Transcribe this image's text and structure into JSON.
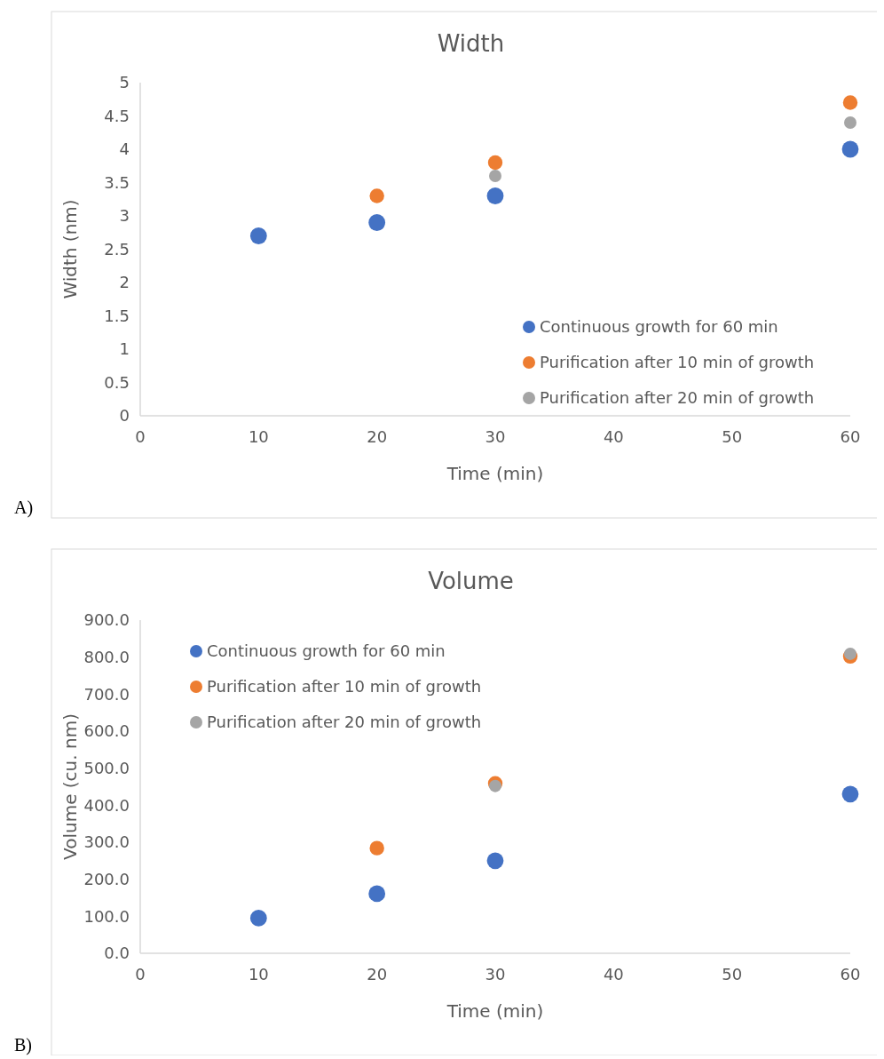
{
  "chart_data": [
    {
      "type": "scatter",
      "title": "Width",
      "xlabel": "Time (min)",
      "ylabel": "Width (nm)",
      "annotations": [
        "A)"
      ],
      "xlim": [
        0,
        60
      ],
      "xticks": [
        0,
        10,
        20,
        30,
        40,
        50,
        60
      ],
      "ylim": [
        0,
        5
      ],
      "yticks": [
        0,
        0.5,
        1,
        1.5,
        2,
        2.5,
        3,
        3.5,
        4,
        4.5,
        5
      ],
      "legend": "bottom right",
      "marker": "circle",
      "grid": false,
      "series": [
        {
          "name": "Continuous growth for 60 min",
          "color": "#4472c4",
          "x": [
            10,
            20,
            30,
            60
          ],
          "values": [
            2.7,
            2.9,
            3.3,
            4.0
          ]
        },
        {
          "name": "Purification after 10 min of growth",
          "color": "#ed7d31",
          "x": [
            20,
            30,
            60
          ],
          "values": [
            3.3,
            3.8,
            4.7
          ]
        },
        {
          "name": "Purification after 20 min of growth",
          "color": "#a5a5a5",
          "x": [
            30,
            60
          ],
          "values": [
            3.6,
            4.4
          ]
        }
      ]
    },
    {
      "type": "scatter",
      "title": "Volume",
      "xlabel": "Time (min)",
      "ylabel": "Volume (cu. nm)",
      "annotations": [
        "B)"
      ],
      "xlim": [
        0,
        60
      ],
      "xticks": [
        0,
        10,
        20,
        30,
        40,
        50,
        60
      ],
      "ylim": [
        0,
        900
      ],
      "yticks": [
        {
          "value": 0,
          "label": "0.0"
        },
        {
          "value": 100,
          "label": "100.0"
        },
        {
          "value": 200,
          "label": "200.0"
        },
        {
          "value": 300,
          "label": "300.0"
        },
        {
          "value": 400,
          "label": "400.0"
        },
        {
          "value": 500,
          "label": "500.0"
        },
        {
          "value": 600,
          "label": "600.0"
        },
        {
          "value": 700,
          "label": "700.0"
        },
        {
          "value": 800,
          "label": "800.0"
        },
        {
          "value": 900,
          "label": "900.0"
        }
      ],
      "legend": "top left",
      "marker": "circle",
      "grid": false,
      "series": [
        {
          "name": "Continuous growth for 60 min",
          "color": "#4472c4",
          "x": [
            10,
            20,
            30,
            60
          ],
          "values": [
            95,
            161,
            250,
            430
          ]
        },
        {
          "name": "Purification after 10 min of growth",
          "color": "#ed7d31",
          "x": [
            20,
            30,
            60
          ],
          "values": [
            284,
            459,
            802
          ]
        },
        {
          "name": "Purification after 20 min of growth",
          "color": "#a5a5a5",
          "x": [
            30,
            60
          ],
          "values": [
            452,
            809
          ]
        }
      ]
    }
  ]
}
